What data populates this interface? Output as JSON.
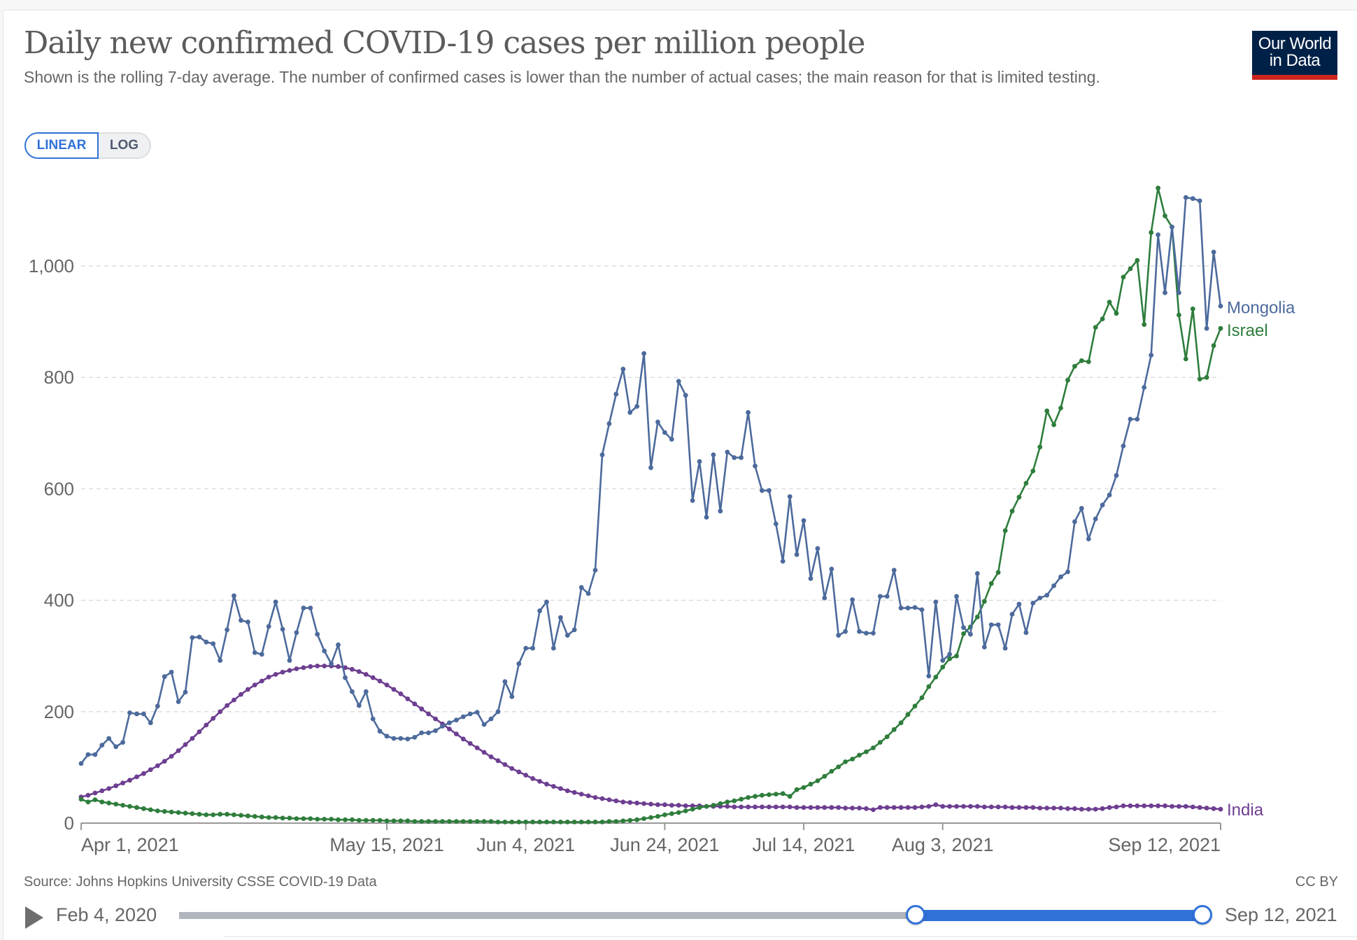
{
  "header": {
    "title": "Daily new confirmed COVID-19 cases per million people",
    "subtitle": "Shown is the rolling 7-day average. The number of confirmed cases is lower than the number of actual cases; the main reason for that is limited testing.",
    "logo_line1": "Our World",
    "logo_line2": "in Data"
  },
  "scale_toggle": {
    "options": [
      "LINEAR",
      "LOG"
    ],
    "selected": "LINEAR"
  },
  "footer": {
    "source": "Source: Johns Hopkins University CSSE COVID-19 Data",
    "license": "CC BY"
  },
  "timeline": {
    "start_label": "Feb 4, 2020",
    "end_label": "Sep 12, 2021",
    "selection_start_fraction": 0.72,
    "selection_end_fraction": 1.0
  },
  "colors": {
    "Mongolia": "#4c6a9c",
    "Israel": "#2e7d3c",
    "India": "#6d3e91",
    "grid": "#dddddd",
    "axis": "#999999",
    "text": "#666666"
  },
  "chart_data": {
    "type": "line",
    "title": "Daily new confirmed COVID-19 cases per million people",
    "xlabel": "",
    "ylabel": "",
    "x_start": "2021-04-01",
    "x_end": "2021-09-12",
    "num_days": 165,
    "ylim": [
      0,
      1150
    ],
    "yticks": [
      0,
      200,
      400,
      600,
      800,
      1000
    ],
    "ytick_labels": [
      "0",
      "200",
      "400",
      "600",
      "800",
      "1,000"
    ],
    "xticks": [
      {
        "day": 0,
        "label": "Apr 1, 2021"
      },
      {
        "day": 44,
        "label": "May 15, 2021"
      },
      {
        "day": 64,
        "label": "Jun 4, 2021"
      },
      {
        "day": 84,
        "label": "Jun 24, 2021"
      },
      {
        "day": 104,
        "label": "Jul 14, 2021"
      },
      {
        "day": 124,
        "label": "Aug 3, 2021"
      },
      {
        "day": 164,
        "label": "Sep 12, 2021"
      }
    ],
    "grid": true,
    "legend": "inline-right",
    "series": [
      {
        "name": "Mongolia",
        "values": [
          107,
          123,
          123,
          140,
          152,
          137,
          145,
          198,
          196,
          196,
          180,
          210,
          263,
          271,
          218,
          235,
          333,
          334,
          325,
          322,
          292,
          347,
          408,
          364,
          361,
          306,
          303,
          353,
          397,
          348,
          292,
          342,
          386,
          386,
          339,
          309,
          286,
          320,
          261,
          236,
          211,
          236,
          187,
          165,
          156,
          152,
          152,
          151,
          154,
          162,
          162,
          166,
          174,
          180,
          185,
          191,
          196,
          199,
          177,
          187,
          200,
          254,
          227,
          286,
          314,
          314,
          381,
          397,
          314,
          369,
          337,
          347,
          423,
          412,
          454,
          661,
          717,
          770,
          815,
          737,
          748,
          843,
          638,
          720,
          701,
          689,
          793,
          768,
          579,
          649,
          549,
          661,
          560,
          666,
          656,
          656,
          737,
          641,
          597,
          597,
          537,
          470,
          586,
          482,
          543,
          439,
          493,
          404,
          456,
          337,
          344,
          401,
          344,
          341,
          341,
          407,
          407,
          454,
          386,
          386,
          387,
          383,
          264,
          397,
          292,
          303,
          407,
          351,
          339,
          448,
          316,
          356,
          356,
          314,
          375,
          393,
          342,
          395,
          404,
          409,
          426,
          442,
          451,
          541,
          565,
          510,
          546,
          571,
          589,
          624,
          677,
          725,
          725,
          782,
          840,
          1056,
          952,
          1070,
          952,
          1123,
          1121,
          1117,
          888,
          1025,
          928
        ]
      },
      {
        "name": "Israel",
        "values": [
          43,
          38,
          42,
          38,
          36,
          34,
          32,
          30,
          28,
          26,
          24,
          22,
          21,
          20,
          19,
          18,
          17,
          16,
          15,
          15,
          16,
          16,
          15,
          14,
          13,
          12,
          11,
          10,
          10,
          9,
          9,
          8,
          8,
          8,
          7,
          7,
          7,
          6,
          6,
          6,
          5,
          5,
          5,
          5,
          4,
          4,
          4,
          4,
          3,
          3,
          3,
          3,
          3,
          3,
          3,
          3,
          3,
          3,
          3,
          3,
          2,
          2,
          2,
          2,
          2,
          2,
          2,
          2,
          2,
          2,
          2,
          2,
          2,
          2,
          2,
          2,
          3,
          3,
          4,
          5,
          6,
          8,
          10,
          12,
          15,
          17,
          19,
          22,
          25,
          28,
          30,
          32,
          35,
          38,
          40,
          43,
          46,
          48,
          50,
          51,
          52,
          53,
          48,
          60,
          64,
          70,
          76,
          84,
          93,
          101,
          110,
          115,
          122,
          128,
          135,
          145,
          155,
          168,
          180,
          195,
          210,
          225,
          245,
          262,
          280,
          295,
          300,
          340,
          352,
          370,
          398,
          430,
          450,
          525,
          560,
          585,
          610,
          632,
          675,
          740,
          715,
          745,
          795,
          820,
          830,
          828,
          890,
          905,
          935,
          915,
          980,
          995,
          1010,
          895,
          1060,
          1140,
          1090,
          1070,
          912,
          833,
          923,
          797,
          800,
          857,
          888
        ]
      },
      {
        "name": "India",
        "values": [
          47,
          50,
          54,
          58,
          62,
          67,
          72,
          77,
          83,
          89,
          96,
          103,
          111,
          120,
          130,
          141,
          152,
          164,
          176,
          188,
          200,
          211,
          221,
          231,
          240,
          248,
          255,
          262,
          267,
          271,
          274,
          277,
          279,
          281,
          282,
          282,
          282,
          281,
          279,
          276,
          272,
          267,
          261,
          255,
          248,
          240,
          232,
          223,
          214,
          205,
          196,
          187,
          178,
          169,
          160,
          151,
          143,
          135,
          127,
          119,
          112,
          105,
          98,
          92,
          86,
          80,
          75,
          70,
          66,
          62,
          58,
          55,
          52,
          49,
          46,
          44,
          42,
          40,
          38,
          37,
          36,
          35,
          34,
          33,
          33,
          32,
          32,
          31,
          31,
          31,
          30,
          30,
          30,
          30,
          29,
          29,
          29,
          29,
          29,
          29,
          29,
          29,
          29,
          28,
          28,
          28,
          28,
          28,
          28,
          28,
          27,
          27,
          27,
          26,
          24,
          28,
          28,
          28,
          28,
          28,
          28,
          29,
          30,
          33,
          30,
          30,
          30,
          30,
          30,
          30,
          29,
          29,
          29,
          29,
          28,
          28,
          28,
          28,
          27,
          27,
          27,
          27,
          26,
          26,
          25,
          25,
          25,
          26,
          28,
          29,
          31,
          31,
          31,
          31,
          31,
          31,
          31,
          30,
          30,
          30,
          29,
          28,
          27,
          26,
          25
        ]
      }
    ]
  }
}
